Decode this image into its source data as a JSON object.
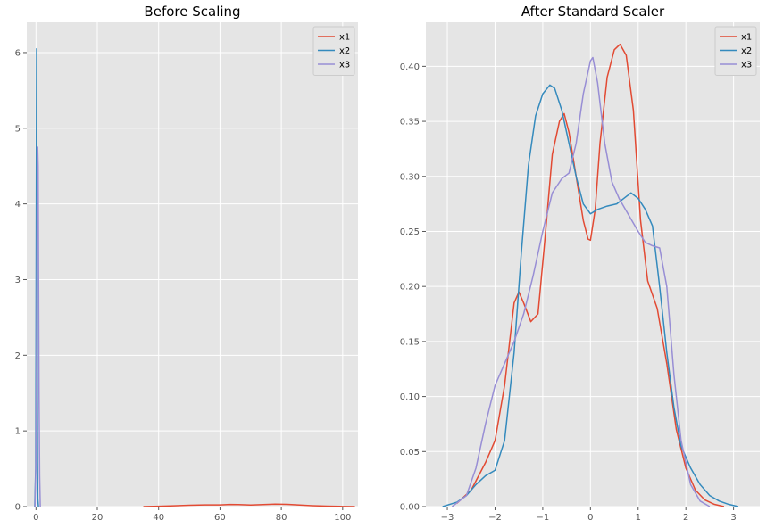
{
  "chart_data": [
    {
      "type": "line",
      "title": "Before Scaling",
      "xlabel": "",
      "ylabel": "",
      "xlim": [
        -3,
        105
      ],
      "ylim": [
        0,
        6.4
      ],
      "xticks": [
        0,
        20,
        40,
        60,
        80,
        100
      ],
      "yticks": [
        0,
        1,
        2,
        3,
        4,
        5,
        6
      ],
      "xtick_labels": [
        "0",
        "20",
        "40",
        "60",
        "80",
        "100"
      ],
      "ytick_labels": [
        "0",
        "1",
        "2",
        "3",
        "4",
        "5",
        "6"
      ],
      "grid": true,
      "legend": "top-right",
      "series": [
        {
          "name": "x1",
          "color": "#e24a33",
          "x": [
            35,
            40,
            45,
            50,
            55,
            60,
            63,
            66,
            70,
            74,
            78,
            82,
            86,
            90,
            95,
            100,
            104
          ],
          "y": [
            0.0,
            0.005,
            0.01,
            0.018,
            0.022,
            0.022,
            0.028,
            0.026,
            0.02,
            0.026,
            0.032,
            0.03,
            0.02,
            0.012,
            0.006,
            0.002,
            0.0
          ]
        },
        {
          "name": "x2",
          "color": "#348abd",
          "x": [
            -0.4,
            -0.1,
            0.0,
            0.1,
            0.2,
            0.3,
            0.4,
            0.5,
            0.6,
            0.8
          ],
          "y": [
            0.0,
            0.5,
            2.0,
            4.2,
            6.05,
            4.3,
            1.8,
            0.6,
            0.1,
            0.0
          ]
        },
        {
          "name": "x3",
          "color": "#988ed5",
          "x": [
            -0.3,
            0.0,
            0.2,
            0.4,
            0.55,
            0.7,
            0.85,
            1.0,
            1.2,
            1.4
          ],
          "y": [
            0.0,
            0.6,
            2.2,
            4.0,
            4.75,
            4.5,
            3.0,
            1.5,
            0.4,
            0.0
          ]
        }
      ]
    },
    {
      "type": "line",
      "title": "After Standard Scaler",
      "xlabel": "",
      "ylabel": "",
      "xlim": [
        -3.45,
        3.55
      ],
      "ylim": [
        0,
        0.44
      ],
      "xticks": [
        -3,
        -2,
        -1,
        0,
        1,
        2,
        3
      ],
      "yticks": [
        0,
        0.05,
        0.1,
        0.15,
        0.2,
        0.25,
        0.3,
        0.35,
        0.4
      ],
      "xtick_labels": [
        "−3",
        "−2",
        "−1",
        "0",
        "1",
        "2",
        "3"
      ],
      "ytick_labels": [
        "0.00",
        "0.05",
        "0.10",
        "0.15",
        "0.20",
        "0.25",
        "0.30",
        "0.35",
        "0.40"
      ],
      "grid": true,
      "legend": "top-right",
      "series": [
        {
          "name": "x1",
          "color": "#e24a33",
          "x": [
            -2.8,
            -2.5,
            -2.2,
            -2.0,
            -1.8,
            -1.6,
            -1.5,
            -1.4,
            -1.25,
            -1.1,
            -0.95,
            -0.8,
            -0.65,
            -0.55,
            -0.45,
            -0.3,
            -0.15,
            -0.05,
            0.0,
            0.1,
            0.2,
            0.35,
            0.5,
            0.62,
            0.75,
            0.9,
            1.05,
            1.2,
            1.4,
            1.6,
            1.8,
            2.0,
            2.2,
            2.4,
            2.6,
            2.8
          ],
          "y": [
            0.003,
            0.015,
            0.04,
            0.06,
            0.11,
            0.185,
            0.195,
            0.185,
            0.168,
            0.175,
            0.245,
            0.32,
            0.35,
            0.357,
            0.34,
            0.3,
            0.26,
            0.243,
            0.242,
            0.27,
            0.33,
            0.39,
            0.415,
            0.42,
            0.41,
            0.36,
            0.26,
            0.205,
            0.18,
            0.13,
            0.07,
            0.035,
            0.015,
            0.006,
            0.002,
            0.0
          ]
        },
        {
          "name": "x2",
          "color": "#348abd",
          "x": [
            -3.1,
            -2.8,
            -2.6,
            -2.4,
            -2.2,
            -2.0,
            -1.8,
            -1.6,
            -1.45,
            -1.3,
            -1.15,
            -1.0,
            -0.85,
            -0.75,
            -0.6,
            -0.45,
            -0.3,
            -0.15,
            0.0,
            0.15,
            0.35,
            0.55,
            0.7,
            0.85,
            1.0,
            1.15,
            1.3,
            1.45,
            1.6,
            1.75,
            1.9,
            2.1,
            2.3,
            2.5,
            2.7,
            2.9,
            3.1
          ],
          "y": [
            0.0,
            0.004,
            0.01,
            0.02,
            0.028,
            0.033,
            0.06,
            0.14,
            0.23,
            0.31,
            0.355,
            0.375,
            0.383,
            0.38,
            0.36,
            0.33,
            0.3,
            0.275,
            0.266,
            0.27,
            0.273,
            0.275,
            0.28,
            0.285,
            0.28,
            0.27,
            0.255,
            0.2,
            0.14,
            0.09,
            0.055,
            0.035,
            0.02,
            0.01,
            0.005,
            0.002,
            0.0
          ]
        },
        {
          "name": "x3",
          "color": "#988ed5",
          "x": [
            -2.9,
            -2.6,
            -2.4,
            -2.2,
            -2.0,
            -1.8,
            -1.6,
            -1.4,
            -1.2,
            -1.0,
            -0.8,
            -0.6,
            -0.45,
            -0.3,
            -0.15,
            0.0,
            0.05,
            0.15,
            0.3,
            0.45,
            0.6,
            0.8,
            1.0,
            1.15,
            1.3,
            1.45,
            1.6,
            1.75,
            1.9,
            2.1,
            2.3,
            2.5
          ],
          "y": [
            0.0,
            0.01,
            0.035,
            0.075,
            0.11,
            0.13,
            0.15,
            0.175,
            0.21,
            0.25,
            0.285,
            0.298,
            0.303,
            0.33,
            0.375,
            0.405,
            0.408,
            0.385,
            0.33,
            0.295,
            0.28,
            0.265,
            0.25,
            0.24,
            0.237,
            0.235,
            0.2,
            0.12,
            0.06,
            0.02,
            0.005,
            0.0
          ]
        }
      ]
    }
  ]
}
